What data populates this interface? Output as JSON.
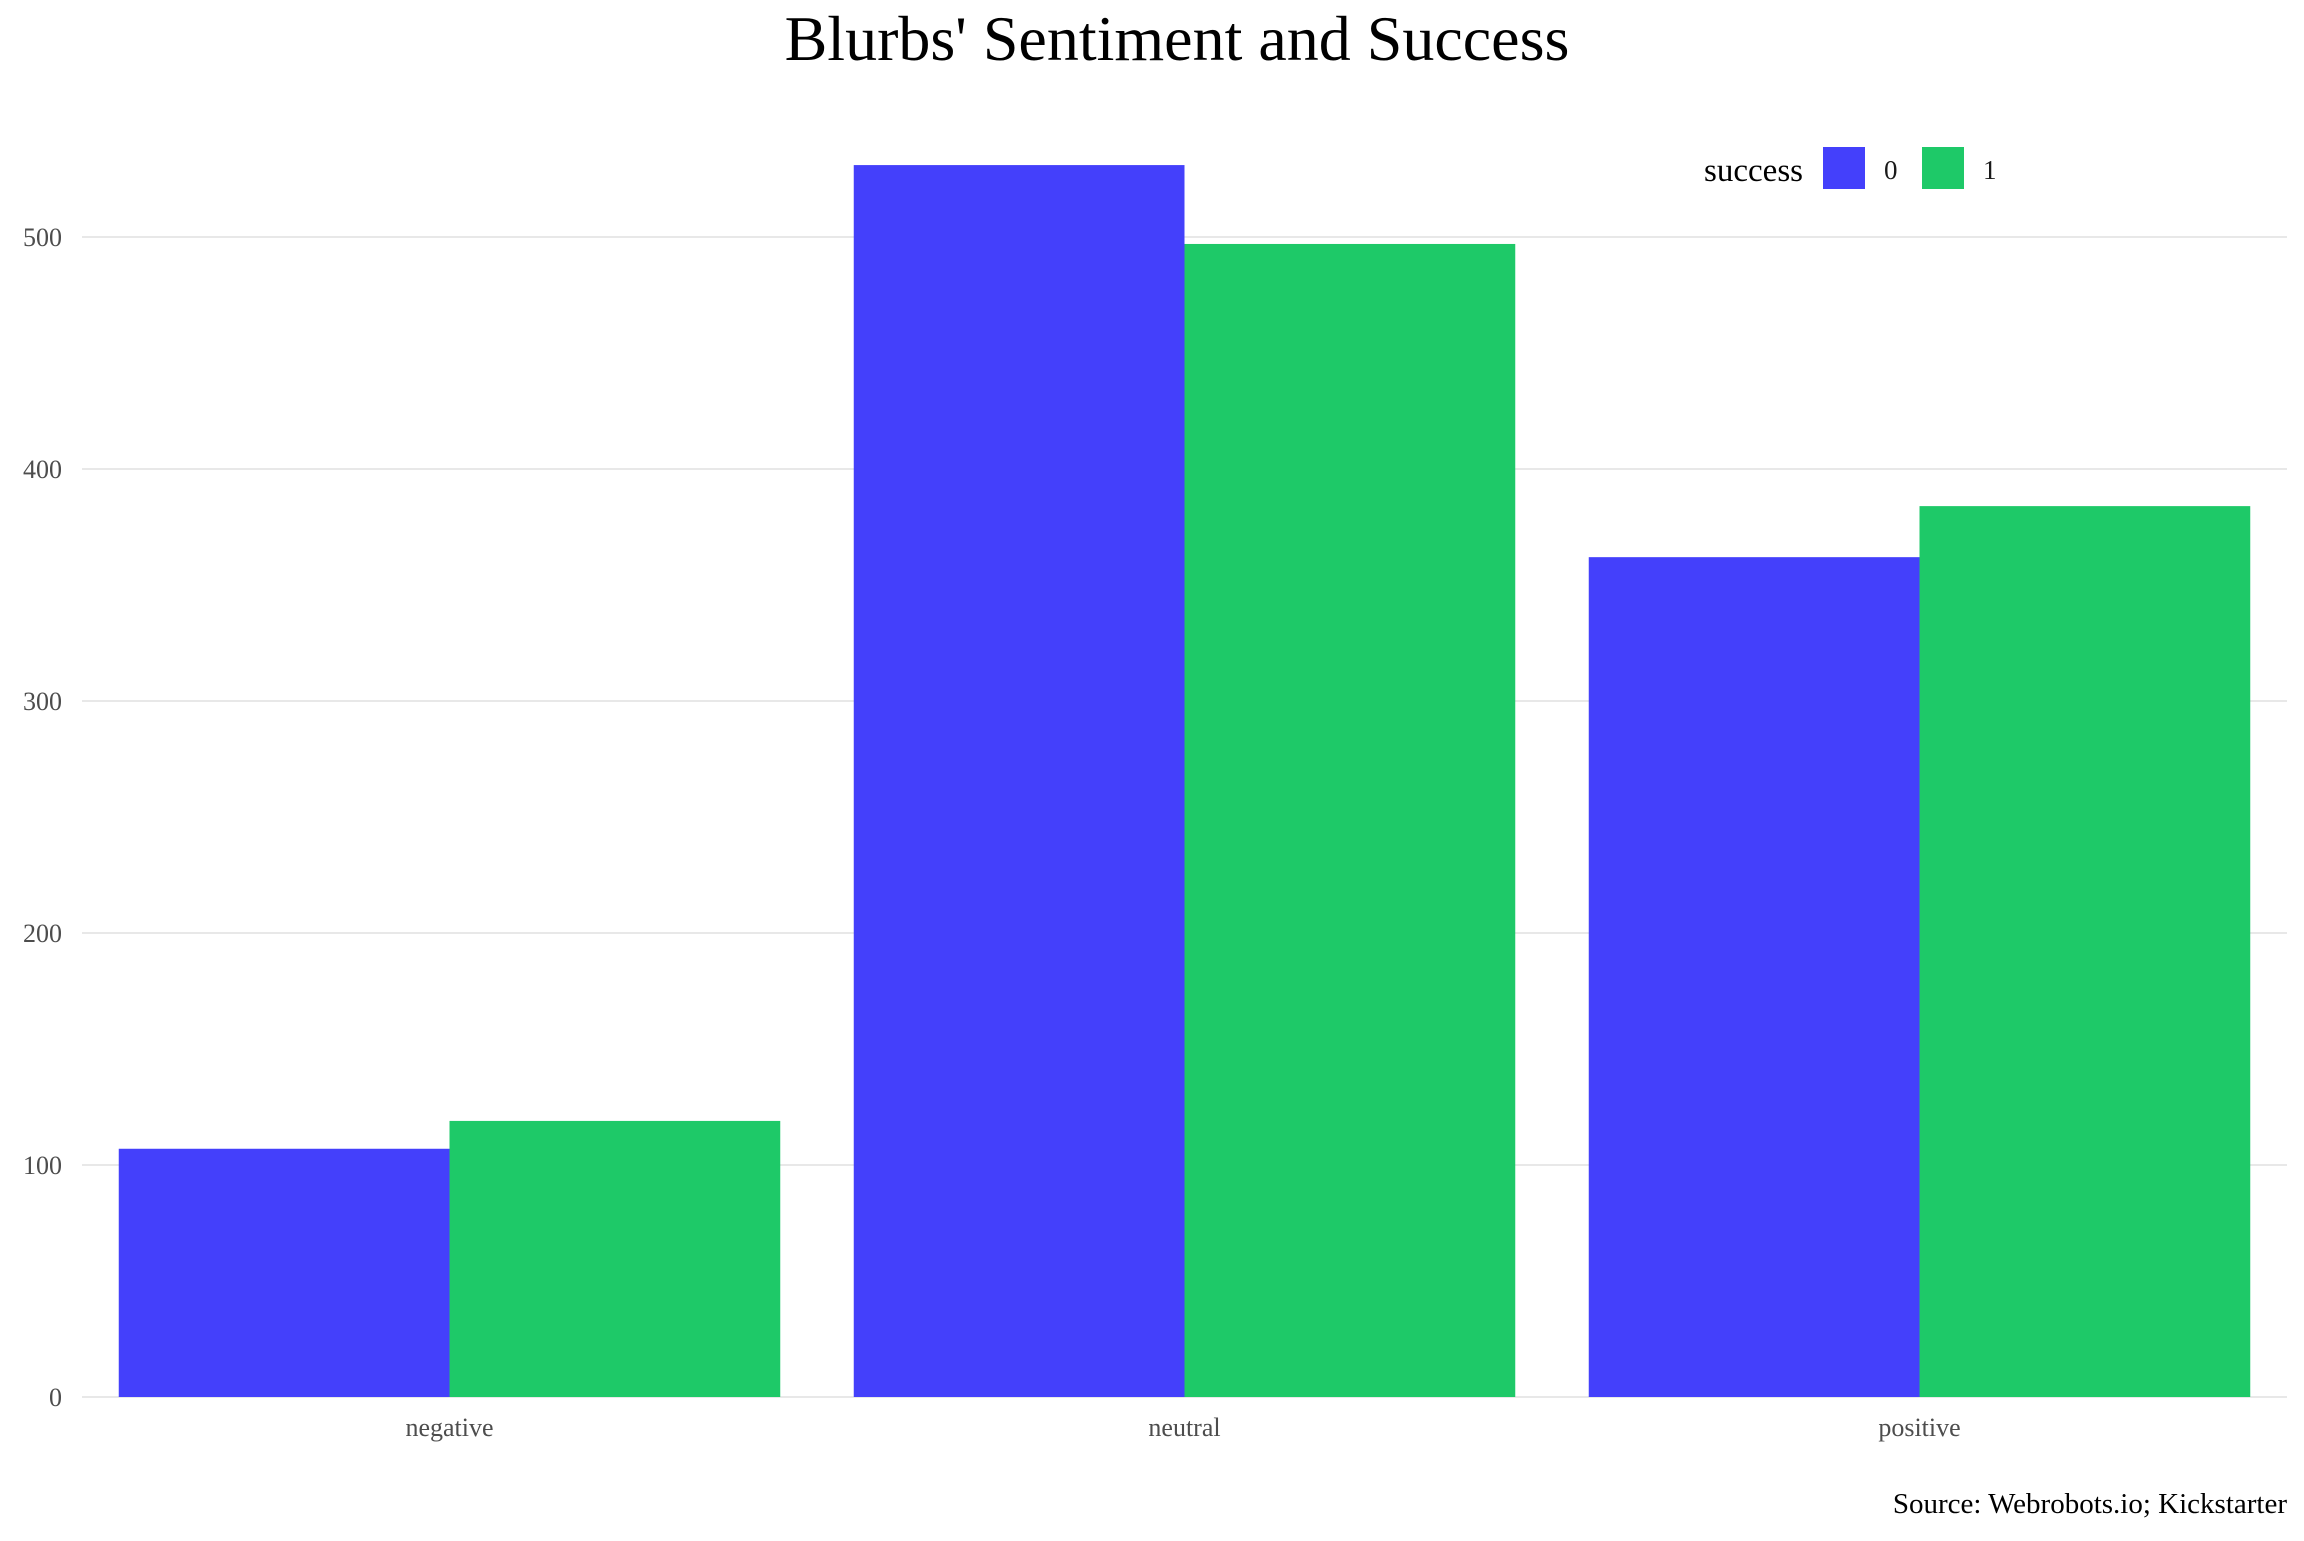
{
  "chart_data": {
    "type": "bar",
    "title": "Blurbs' Sentiment and Success",
    "caption": "Source: Webrobots.io; Kickstarter",
    "xlabel": "",
    "ylabel": "",
    "categories": [
      "negative",
      "neutral",
      "positive"
    ],
    "legend": {
      "title": "success",
      "placement": "top-right"
    },
    "series": [
      {
        "name": "0",
        "color": "#4440FB",
        "values": [
          107,
          531,
          362
        ]
      },
      {
        "name": "1",
        "color": "#1EC968",
        "values": [
          119,
          497,
          384
        ]
      }
    ],
    "ylim": [
      0,
      550
    ],
    "yticks": [
      0,
      100,
      200,
      300,
      400,
      500
    ],
    "grid": true
  }
}
